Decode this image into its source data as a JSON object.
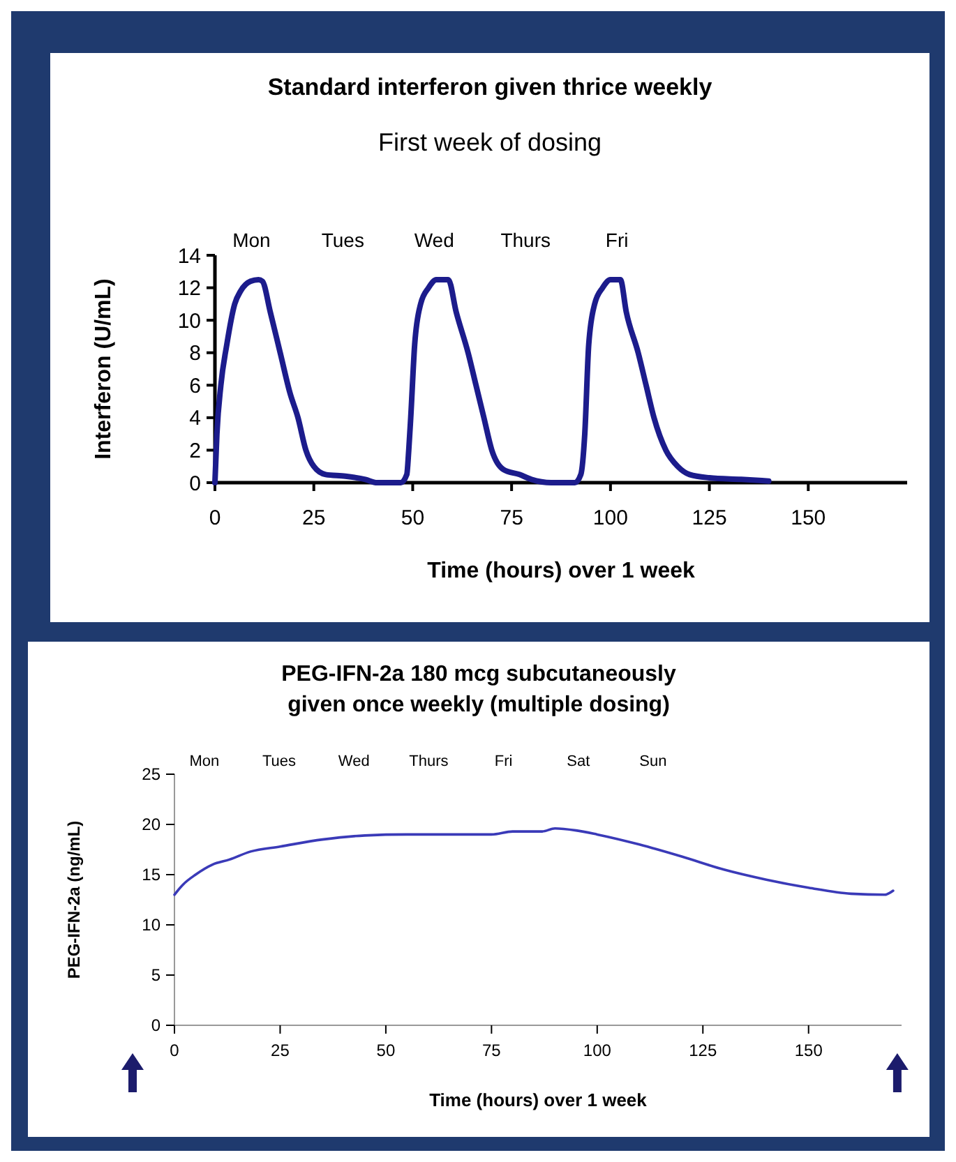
{
  "chart_data": [
    {
      "type": "line",
      "title": "Standard interferon given thrice weekly",
      "subtitle": "First week of dosing",
      "xlabel": "Time (hours) over 1 week",
      "ylabel": "Interferon (U/mL)",
      "xlim": [
        0,
        175
      ],
      "xticks": [
        0,
        25,
        50,
        75,
        100,
        125,
        150
      ],
      "ylim": [
        0,
        14
      ],
      "yticks": [
        0,
        2,
        4,
        6,
        8,
        10,
        12,
        14
      ],
      "annotations": [
        "Mon",
        "Tues",
        "Wed",
        "Thurs",
        "Fri"
      ],
      "grid": false,
      "marker": "none",
      "line_style": "solid",
      "series": [
        {
          "color": "#1c1c8c",
          "x": [
            0,
            0.5,
            1.5,
            3,
            5,
            6.5,
            9,
            11,
            12,
            14,
            16.5,
            19,
            21,
            23,
            25,
            28,
            33,
            38,
            41,
            47,
            48.5,
            49,
            49.5,
            50.5,
            52,
            54,
            56,
            58,
            59,
            61,
            64,
            66,
            68,
            70,
            73,
            77,
            80,
            85,
            91,
            92.5,
            93.5,
            94.5,
            96,
            98,
            100,
            102.5,
            104,
            107,
            109,
            111,
            114,
            117,
            120,
            125,
            133,
            140
          ],
          "values": [
            0,
            3,
            6,
            8.5,
            11,
            11.8,
            12.4,
            12.5,
            12.4,
            10.5,
            8,
            5.5,
            4,
            2,
            1,
            0.5,
            0.4,
            0.2,
            0,
            0,
            0.5,
            2,
            4,
            8.5,
            11,
            12,
            12.5,
            12.5,
            12.5,
            10.5,
            8,
            6,
            4,
            2,
            0.8,
            0.5,
            0.2,
            0,
            0,
            0.5,
            3,
            8.5,
            11,
            12,
            12.5,
            12.5,
            10.5,
            8,
            6,
            4,
            2,
            1,
            0.5,
            0.3,
            0.2,
            0.1
          ]
        }
      ]
    },
    {
      "type": "line",
      "title": "PEG-IFN-2a 180 mcg subcutaneously\ngiven once weekly (multiple dosing)",
      "xlabel": "Time (hours) over 1 week",
      "ylabel": "PEG-IFN-2a (ng/mL)",
      "xlim": [
        0,
        172
      ],
      "xticks": [
        0,
        25,
        50,
        75,
        100,
        125,
        150
      ],
      "ylim": [
        0,
        25
      ],
      "yticks": [
        0,
        5,
        10,
        15,
        20,
        25
      ],
      "annotations": [
        "Mon",
        "Tues",
        "Wed",
        "Thurs",
        "Fri",
        "Sat",
        "Sun"
      ],
      "grid": false,
      "marker": "none",
      "line_style": "solid",
      "series": [
        {
          "color": "#3a3ab8",
          "x": [
            0,
            2,
            5,
            9,
            13,
            18,
            25,
            35,
            45,
            55,
            75,
            80,
            87,
            90,
            95,
            100,
            110,
            120,
            130,
            140,
            150,
            160,
            168,
            170
          ],
          "values": [
            13,
            14,
            15,
            16,
            16.5,
            17.3,
            17.8,
            18.5,
            18.9,
            19,
            19,
            19.3,
            19.3,
            19.6,
            19.4,
            19,
            18,
            16.8,
            15.5,
            14.5,
            13.7,
            13.1,
            13,
            13.4
          ]
        }
      ]
    }
  ]
}
